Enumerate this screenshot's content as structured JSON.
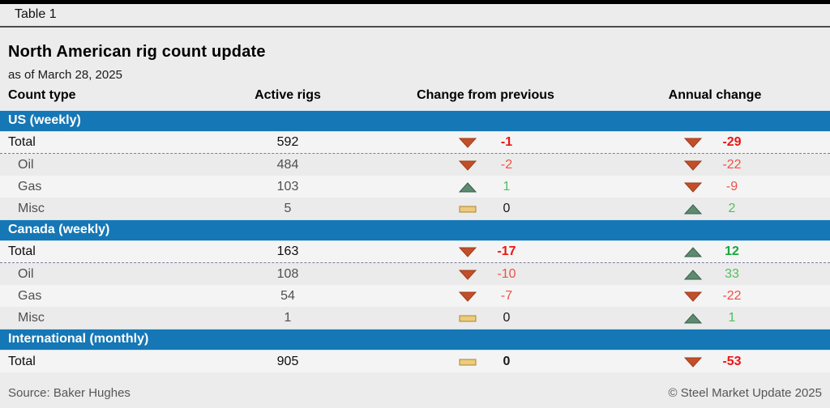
{
  "meta": {
    "table_label": "Table 1",
    "title": "North American rig count update",
    "subtitle": "as of March 28, 2025",
    "source": "Source: Baker Hughes",
    "copyright": "© Steel Market Update 2025"
  },
  "colors": {
    "section_header_blue": "#1577b5",
    "down_triangle_fill": "#c24f28",
    "down_triangle_stroke": "#9e3c1c",
    "up_triangle_fill": "#5d8a70",
    "up_triangle_stroke": "#37604a",
    "flat_bar_fill": "#edca7e",
    "flat_bar_stroke": "#a8862e",
    "negative_red": "#ed1414",
    "positive_green": "#17a93c"
  },
  "chart_data": {
    "type": "table",
    "title": "North American rig count update",
    "subtitle": "as of March 28, 2025",
    "columns": [
      "Count type",
      "Active rigs",
      "Change from previous",
      "Annual change"
    ],
    "sections": [
      {
        "header": "US (weekly)",
        "rows": [
          {
            "label": "Total",
            "active_rigs": 592,
            "change_from_previous": -1,
            "annual_change": -29,
            "is_total": true,
            "divider": true
          },
          {
            "label": "Oil",
            "active_rigs": 484,
            "change_from_previous": -2,
            "annual_change": -22
          },
          {
            "label": "Gas",
            "active_rigs": 103,
            "change_from_previous": 1,
            "annual_change": -9
          },
          {
            "label": "Misc",
            "active_rigs": 5,
            "change_from_previous": 0,
            "annual_change": 2
          }
        ]
      },
      {
        "header": "Canada (weekly)",
        "rows": [
          {
            "label": "Total",
            "active_rigs": 163,
            "change_from_previous": -17,
            "annual_change": 12,
            "is_total": true,
            "divider": true
          },
          {
            "label": "Oil",
            "active_rigs": 108,
            "change_from_previous": -10,
            "annual_change": 33
          },
          {
            "label": "Gas",
            "active_rigs": 54,
            "change_from_previous": -7,
            "annual_change": -22
          },
          {
            "label": "Misc",
            "active_rigs": 1,
            "change_from_previous": 0,
            "annual_change": 1
          }
        ]
      },
      {
        "header": "International (monthly)",
        "rows": [
          {
            "label": "Total",
            "active_rigs": 905,
            "change_from_previous": 0,
            "annual_change": -53,
            "is_total": true
          }
        ]
      }
    ]
  }
}
